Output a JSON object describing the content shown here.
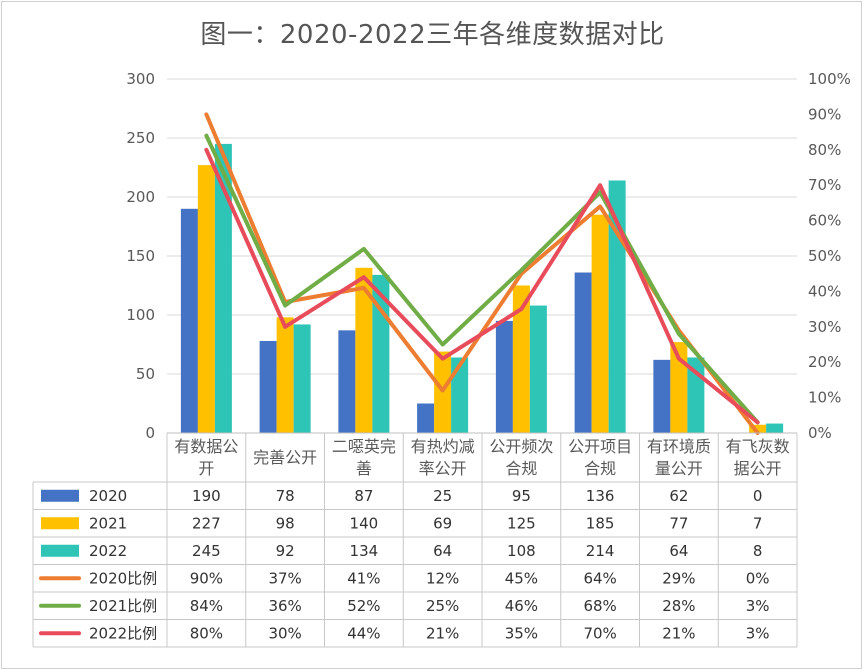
{
  "chart_data": {
    "title": "图一：2020-2022三年各维度数据对比",
    "type": "bar",
    "categories": [
      [
        "有数据公",
        "开"
      ],
      [
        "完善公开"
      ],
      [
        "二噁英完",
        "善"
      ],
      [
        "有热灼减",
        "率公开"
      ],
      [
        "公开频次",
        "合规"
      ],
      [
        "公开项目",
        "合规"
      ],
      [
        "有环境质",
        "量公开"
      ],
      [
        "有飞灰数",
        "据公开"
      ]
    ],
    "y_left": {
      "min": 0,
      "max": 300,
      "ticks": [
        0,
        50,
        100,
        150,
        200,
        250,
        300
      ]
    },
    "y_right": {
      "min": 0,
      "max": 100,
      "ticks": [
        "0%",
        "10%",
        "20%",
        "30%",
        "40%",
        "50%",
        "60%",
        "70%",
        "80%",
        "90%",
        "100%"
      ]
    },
    "bar_series": [
      {
        "name": "2020",
        "color": "#4472C4",
        "values": [
          190,
          78,
          87,
          25,
          95,
          136,
          62,
          0
        ]
      },
      {
        "name": "2021",
        "color": "#FFC000",
        "values": [
          227,
          98,
          140,
          69,
          125,
          185,
          77,
          7
        ]
      },
      {
        "name": "2022",
        "color": "#2EC4B6",
        "values": [
          245,
          92,
          134,
          64,
          108,
          214,
          64,
          8
        ]
      }
    ],
    "line_series": [
      {
        "name": "2020比例",
        "color": "#ED7D31",
        "values": [
          90,
          37,
          41,
          12,
          45,
          64,
          29,
          0
        ],
        "labels": [
          "90%",
          "37%",
          "41%",
          "12%",
          "45%",
          "64%",
          "29%",
          "0%"
        ]
      },
      {
        "name": "2021比例",
        "color": "#70AD47",
        "values": [
          84,
          36,
          52,
          25,
          46,
          68,
          28,
          3
        ],
        "labels": [
          "84%",
          "36%",
          "52%",
          "25%",
          "46%",
          "68%",
          "28%",
          "3%"
        ]
      },
      {
        "name": "2022比例",
        "color": "#E84C5A",
        "values": [
          80,
          30,
          44,
          21,
          35,
          70,
          21,
          3
        ],
        "labels": [
          "80%",
          "30%",
          "44%",
          "21%",
          "35%",
          "70%",
          "21%",
          "3%"
        ]
      }
    ],
    "grid": true,
    "legend": "data-table"
  }
}
